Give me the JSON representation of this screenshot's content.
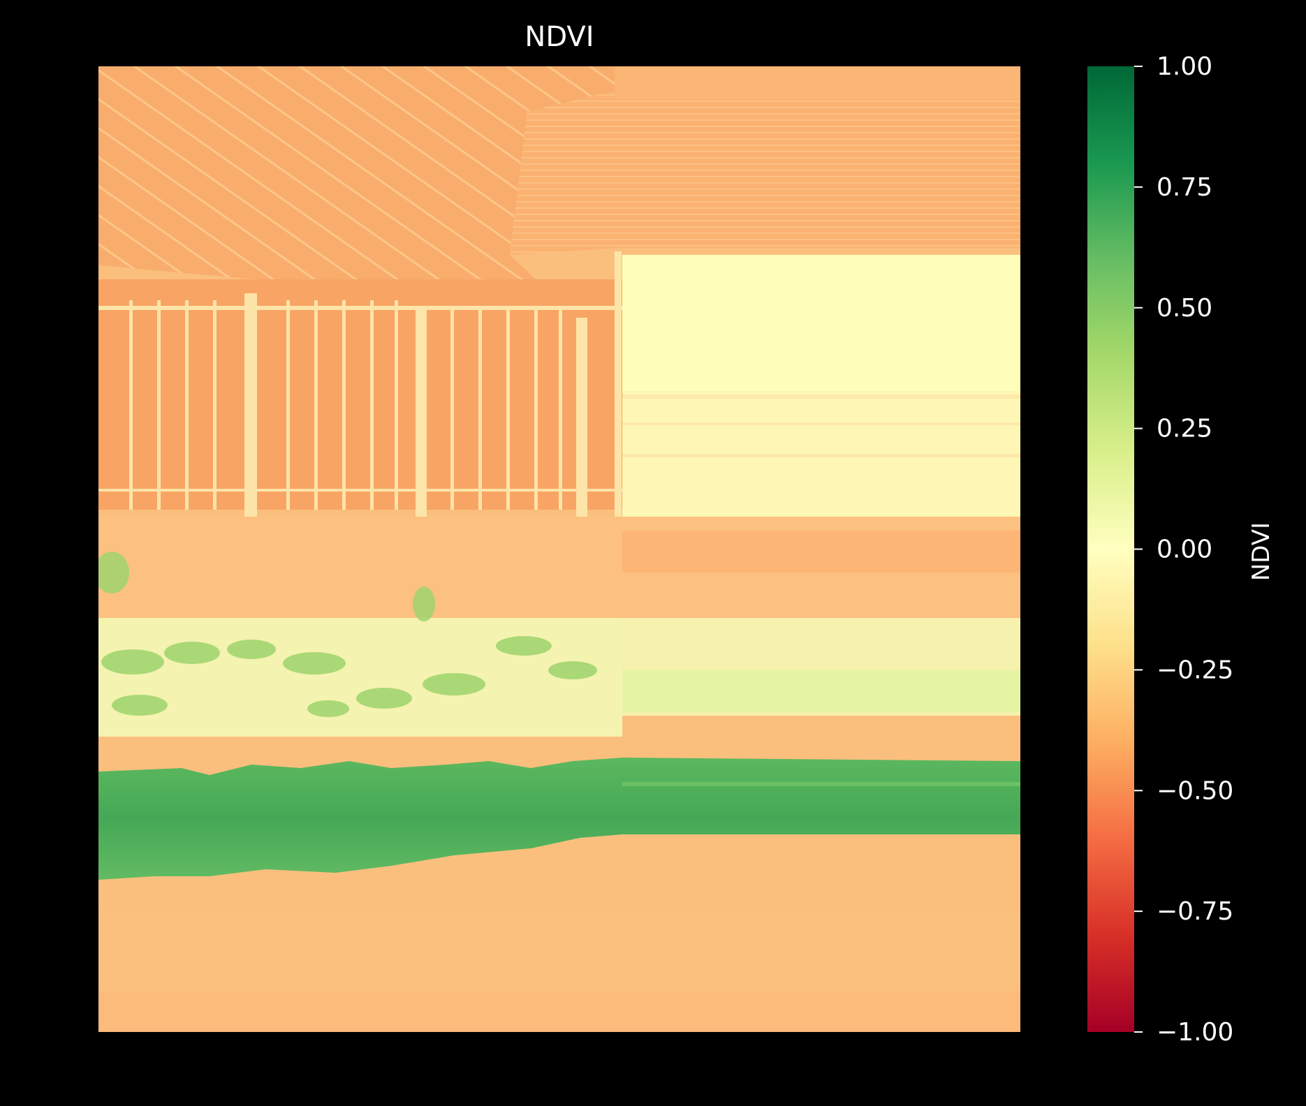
{
  "chart_data": {
    "type": "heatmap",
    "title": "NDVI",
    "xlabel": "",
    "ylabel": "",
    "axes_visible": false,
    "colormap": "RdYlGn",
    "colormap_stops": [
      "#a50026",
      "#d73027",
      "#f46d43",
      "#fdae61",
      "#fee08b",
      "#ffffbf",
      "#d9ef8b",
      "#a6d96a",
      "#66bd63",
      "#1a9850",
      "#006837"
    ],
    "colorbar": {
      "label": "NDVI",
      "vmin": -1.0,
      "vmax": 1.0,
      "ticks": [
        1.0,
        0.75,
        0.5,
        0.25,
        0.0,
        -0.25,
        -0.5,
        -0.75,
        -1.0
      ],
      "tick_labels": [
        "1.00",
        "0.75",
        "0.50",
        "0.25",
        "0.00",
        "−0.25",
        "−0.50",
        "−0.75",
        "−1.00"
      ]
    },
    "image_description_regions": [
      {
        "name": "roof",
        "ndvi": -0.38
      },
      {
        "name": "window-wall",
        "ndvi": -0.42
      },
      {
        "name": "bright-panel",
        "ndvi": -0.02
      },
      {
        "name": "shrub-band",
        "ndvi": 0.22
      },
      {
        "name": "hedge",
        "ndvi": 0.62
      },
      {
        "name": "ground",
        "ndvi": -0.3
      }
    ]
  }
}
